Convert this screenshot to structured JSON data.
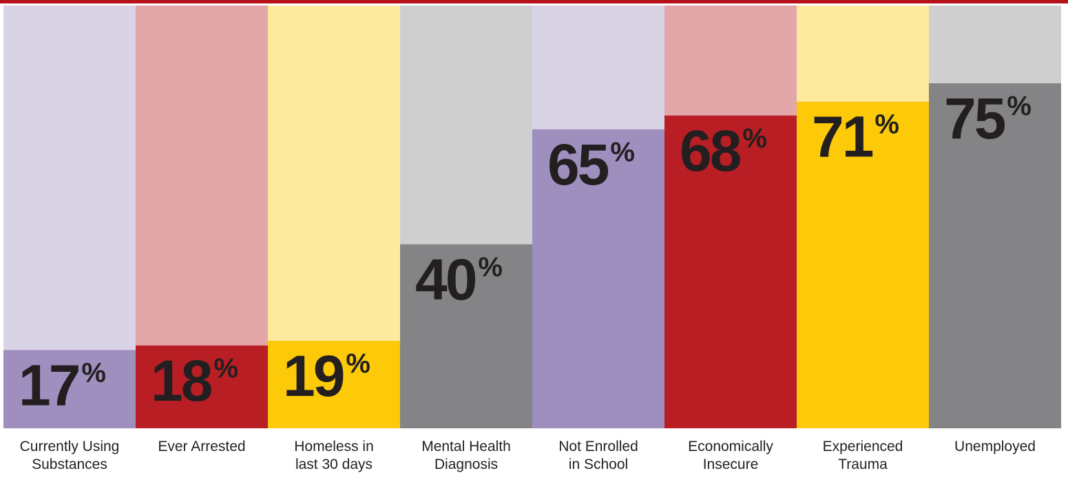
{
  "chart_data": {
    "type": "bar",
    "categories": [
      "Currently Using\nSubstances",
      "Ever Arrested",
      "Homeless in\nlast 30 days",
      "Mental Health\nDiagnosis",
      "Not Enrolled\nin School",
      "Economically\nInsecure",
      "Experienced\nTrauma",
      "Unemployed"
    ],
    "values": [
      17,
      18,
      19,
      40,
      65,
      68,
      71,
      75
    ],
    "value_labels": [
      "17%",
      "18%",
      "19%",
      "40%",
      "65%",
      "68%",
      "71%",
      "75%"
    ],
    "colors": [
      "#9b8bbd",
      "#b5161c",
      "#fcc800",
      "#808082",
      "#9b8bbd",
      "#b5161c",
      "#fcc800",
      "#808082"
    ]
  }
}
